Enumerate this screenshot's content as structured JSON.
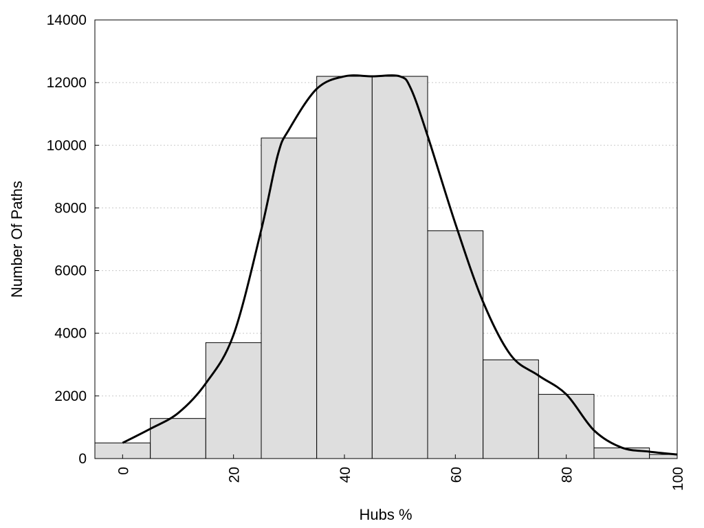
{
  "chart_data": {
    "type": "bar",
    "xlabel": "Hubs %",
    "ylabel": "Number Of Paths",
    "xlim": [
      -5,
      100
    ],
    "ylim": [
      0,
      14000
    ],
    "x_ticks": [
      "0",
      "20",
      "40",
      "60",
      "80",
      "100"
    ],
    "y_ticks": [
      "0",
      "2000",
      "4000",
      "6000",
      "8000",
      "10000",
      "12000",
      "14000"
    ],
    "grid": "horizontal dotted",
    "legend": "none",
    "bin_width": 10,
    "bins": [
      {
        "x": 0,
        "value": 500
      },
      {
        "x": 10,
        "value": 1280
      },
      {
        "x": 20,
        "value": 3700
      },
      {
        "x": 30,
        "value": 10230
      },
      {
        "x": 40,
        "value": 12200
      },
      {
        "x": 50,
        "value": 12200
      },
      {
        "x": 60,
        "value": 7270
      },
      {
        "x": 70,
        "value": 3150
      },
      {
        "x": 80,
        "value": 2050
      },
      {
        "x": 90,
        "value": 340
      },
      {
        "x": 100,
        "value": 130
      }
    ],
    "density_curve": {
      "x": [
        0,
        5,
        10,
        15,
        20,
        25,
        28,
        30,
        35,
        40,
        45,
        50,
        52,
        55,
        60,
        65,
        70,
        75,
        80,
        85,
        90,
        95,
        100
      ],
      "y": [
        500,
        950,
        1450,
        2400,
        3950,
        7300,
        9700,
        10500,
        11800,
        12200,
        12200,
        12200,
        11800,
        10300,
        7500,
        5000,
        3300,
        2650,
        2050,
        900,
        350,
        220,
        130
      ]
    },
    "colors": {
      "bar_fill": "#dedede",
      "bar_stroke": "#000000",
      "curve": "#000000",
      "grid": "#c8c8c8"
    }
  }
}
